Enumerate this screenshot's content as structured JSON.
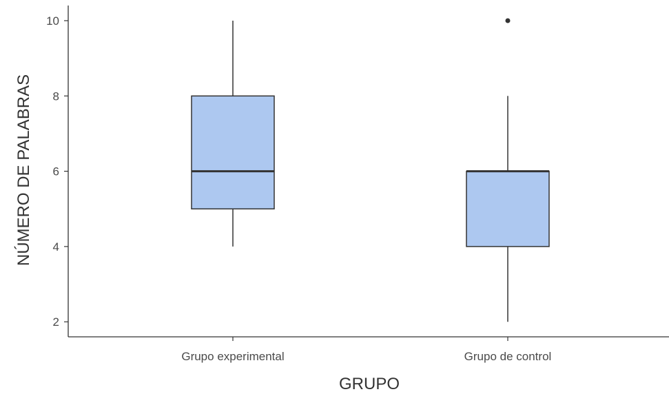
{
  "chart_data": {
    "type": "boxplot",
    "xlabel": "GRUPO",
    "ylabel": "NÚMERO DE PALABRAS",
    "ylim": [
      1.6,
      10.4
    ],
    "yticks": [
      2,
      4,
      6,
      8,
      10
    ],
    "grid": false,
    "categories": [
      "Grupo experimental",
      "Grupo de control"
    ],
    "boxes": [
      {
        "category": "Grupo experimental",
        "whisker_low": 4,
        "q1": 5,
        "median": 6,
        "q3": 8,
        "whisker_high": 10,
        "outliers": []
      },
      {
        "category": "Grupo de control",
        "whisker_low": 2,
        "q1": 4,
        "median": 6,
        "q3": 6,
        "whisker_high": 8,
        "outliers": [
          10
        ]
      }
    ],
    "colors": {
      "box_fill": "#adc8f0",
      "line": "#333333",
      "axis": "#333333"
    }
  }
}
